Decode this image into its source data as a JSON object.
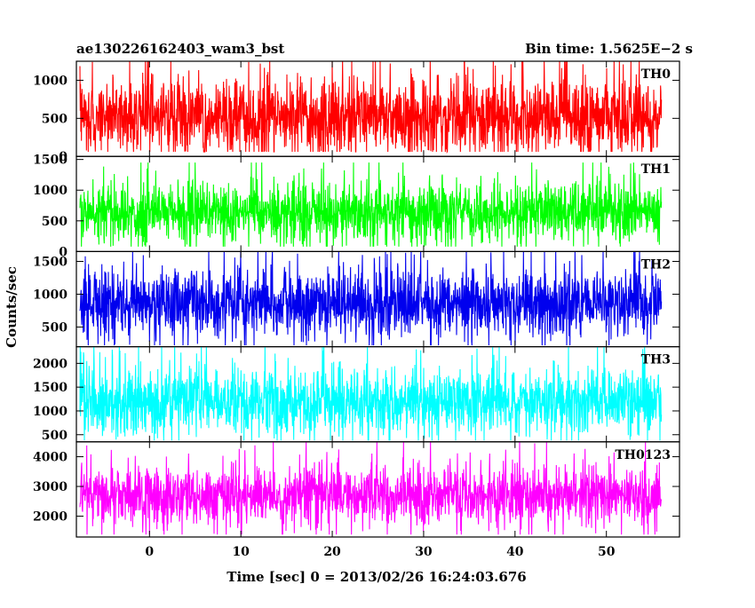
{
  "chart_data": {
    "type": "line",
    "title": "ae130226162403_wam3_bst",
    "subtitle": "Bin time: 1.5625E−2 s",
    "xlabel": "Time [sec] 0 = 2013/02/26 16:24:03.676",
    "ylabel": "Counts/sec",
    "xlim": [
      -8,
      58
    ],
    "data_range": [
      -7.6,
      56
    ],
    "xticks": [
      0,
      10,
      20,
      30,
      40,
      50
    ],
    "xtick_labels": [
      "0",
      "10",
      "20",
      "30",
      "40",
      "50"
    ],
    "grid": false,
    "series": [
      {
        "name": "TH0",
        "color": "#ff0000",
        "ylim": [
          0,
          1250
        ],
        "yticks": [
          0,
          500,
          1000
        ],
        "ytick_labels": [
          "0",
          "500",
          "1000"
        ],
        "baseline": 520,
        "noise_sd": 240,
        "min_value": 60,
        "max_value": 1250
      },
      {
        "name": "TH1",
        "color": "#00ff00",
        "ylim": [
          0,
          1550
        ],
        "yticks": [
          0,
          500,
          1000,
          1500
        ],
        "ytick_labels": [
          "0",
          "500",
          "1000",
          "1500"
        ],
        "baseline": 630,
        "noise_sd": 230,
        "min_value": 80,
        "max_value": 1450
      },
      {
        "name": "TH2",
        "color": "#0000ee",
        "ylim": [
          200,
          1650
        ],
        "yticks": [
          500,
          1000,
          1500
        ],
        "ytick_labels": [
          "500",
          "1000",
          "1500"
        ],
        "baseline": 870,
        "noise_sd": 250,
        "min_value": 220,
        "max_value": 1650
      },
      {
        "name": "TH3",
        "color": "#00ffff",
        "ylim": [
          350,
          2350
        ],
        "yticks": [
          500,
          1000,
          1500,
          2000
        ],
        "ytick_labels": [
          "500",
          "1000",
          "1500",
          "2000"
        ],
        "baseline": 1180,
        "noise_sd": 330,
        "min_value": 380,
        "max_value": 2350
      },
      {
        "name": "TH0123",
        "color": "#ff00ff",
        "ylim": [
          1300,
          4500
        ],
        "yticks": [
          2000,
          3000,
          4000
        ],
        "ytick_labels": [
          "2000",
          "3000",
          "4000"
        ],
        "baseline": 2700,
        "noise_sd": 480,
        "min_value": 1380,
        "max_value": 4500
      }
    ]
  }
}
